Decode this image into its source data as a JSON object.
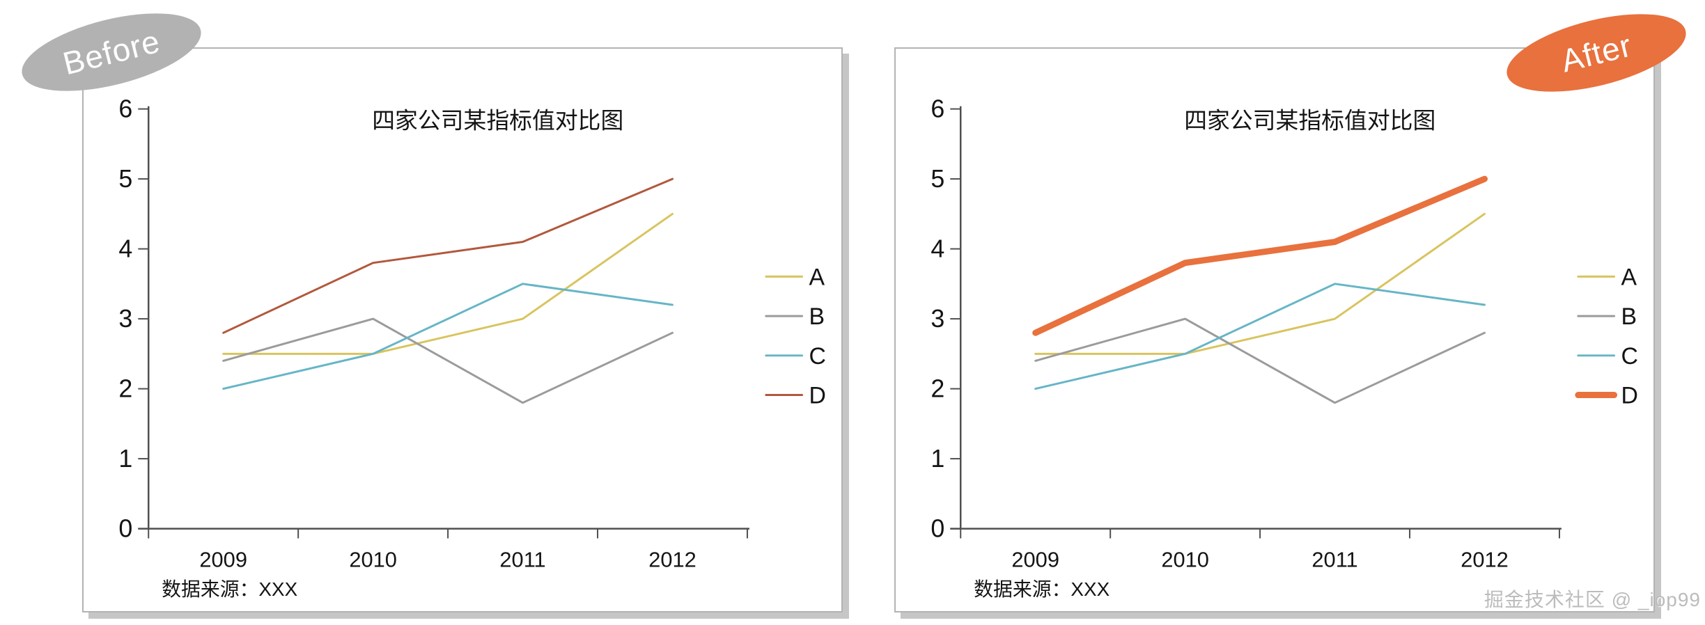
{
  "watermark": "掘金技术社区 @ _iop99",
  "panels": [
    {
      "badge_label": "Before",
      "badge_color": "#b2b2b2",
      "d_line_color": "#b2583c",
      "d_line_width": 3
    },
    {
      "badge_label": "After",
      "badge_color": "#e8713d",
      "d_line_color": "#e8713d",
      "d_line_width": 9
    }
  ],
  "chart_data": {
    "type": "line",
    "title": "四家公司某指标值对比图",
    "categories": [
      "2009",
      "2010",
      "2011",
      "2012"
    ],
    "series": [
      {
        "name": "A",
        "values": [
          2.5,
          2.5,
          3.0,
          4.5
        ],
        "color": "#d8c45f"
      },
      {
        "name": "B",
        "values": [
          2.4,
          3.0,
          1.8,
          2.8
        ],
        "color": "#9b9b9b"
      },
      {
        "name": "C",
        "values": [
          2.0,
          2.5,
          3.5,
          3.2
        ],
        "color": "#66b5c6"
      },
      {
        "name": "D",
        "values": [
          2.8,
          3.8,
          4.1,
          5.0
        ],
        "color": "#b2583c"
      }
    ],
    "ylim": [
      0,
      6
    ],
    "ytick_step": 1,
    "yticks": [
      0,
      1,
      2,
      3,
      4,
      5,
      6
    ],
    "grid": "off",
    "legend_position": "right",
    "source_note": "数据来源：XXX",
    "axis_color": "#4f4f4f",
    "text_color": "#141414"
  }
}
